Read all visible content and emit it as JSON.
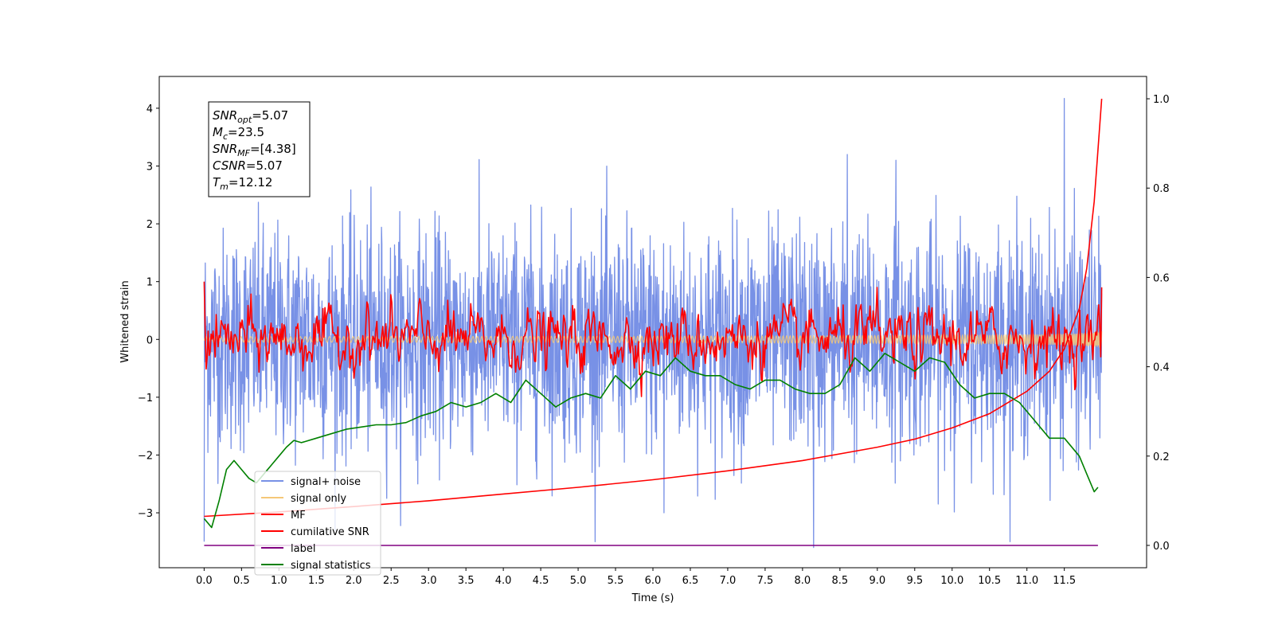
{
  "chart_data": {
    "type": "line",
    "xlabel": "Time (s)",
    "ylabel_left": "Whitened strain",
    "ylabel_right": "",
    "xlim": [
      -0.6,
      12.6
    ],
    "ylim_left": [
      -3.95,
      4.55
    ],
    "ylim_right": [
      -0.05,
      1.05
    ],
    "x_ticks": [
      "0.0",
      "0.5",
      "1.0",
      "1.5",
      "2.0",
      "2.5",
      "3.0",
      "3.5",
      "4.0",
      "4.5",
      "5.0",
      "5.5",
      "6.0",
      "6.5",
      "7.0",
      "7.5",
      "8.0",
      "8.5",
      "9.0",
      "9.5",
      "10.0",
      "10.5",
      "11.0",
      "11.5"
    ],
    "y_ticks_left": [
      "4",
      "3",
      "2",
      "1",
      "0",
      "−1",
      "−2",
      "−3"
    ],
    "y_ticks_right": [
      "1.0",
      "0.8",
      "0.6",
      "0.4",
      "0.2",
      "0.0"
    ],
    "grid": false,
    "legend_position": "lower-left",
    "info_box": {
      "lines": [
        {
          "sym": "SNR",
          "sub": "opt",
          "val": "=5.07"
        },
        {
          "sym": "M",
          "sub": "c",
          "val": "=23.5"
        },
        {
          "sym": "SNR",
          "sub": "MF",
          "val": "=[4.38]"
        },
        {
          "sym": "CSNR",
          "sub": "",
          "val": "=5.07"
        },
        {
          "sym": "T",
          "sub": "m",
          "val": "=12.12"
        }
      ]
    },
    "series": [
      {
        "name": "signal+ noise",
        "color": "#7891e6",
        "axis": "left",
        "kind": "noise",
        "std": 0.95,
        "range": [
          -3.5,
          4.2
        ],
        "x_range": [
          0,
          12.0
        ]
      },
      {
        "name": "signal only",
        "color": "#f5c878",
        "axis": "left",
        "kind": "chirp",
        "amplitude_end": 0.3,
        "x_range": [
          0,
          12.0
        ]
      },
      {
        "name": "MF",
        "color": "#ff0000",
        "axis": "left",
        "kind": "mf",
        "std": 0.22,
        "start": 1.0,
        "end": 0.9,
        "x_range": [
          0,
          12.0
        ]
      },
      {
        "name": "cumilative SNR",
        "color": "#ff0000",
        "axis": "right",
        "x": [
          0.0,
          1.0,
          2.0,
          3.0,
          4.0,
          5.0,
          6.0,
          7.0,
          8.0,
          9.0,
          9.5,
          10.0,
          10.5,
          11.0,
          11.3,
          11.5,
          11.7,
          11.8,
          11.9,
          12.0
        ],
        "y": [
          0.065,
          0.075,
          0.087,
          0.1,
          0.115,
          0.13,
          0.147,
          0.167,
          0.19,
          0.22,
          0.238,
          0.263,
          0.295,
          0.345,
          0.39,
          0.44,
          0.53,
          0.62,
          0.77,
          1.0
        ]
      },
      {
        "name": "label",
        "color": "#800080",
        "axis": "right",
        "x": [
          0.0,
          11.95
        ],
        "y": [
          0.0,
          0.0
        ]
      },
      {
        "name": "signal statistics",
        "color": "#008000",
        "axis": "right",
        "x": [
          0.0,
          0.1,
          0.2,
          0.3,
          0.4,
          0.5,
          0.6,
          0.7,
          0.8,
          0.9,
          1.0,
          1.1,
          1.2,
          1.3,
          1.5,
          1.7,
          1.9,
          2.1,
          2.3,
          2.5,
          2.7,
          2.9,
          3.1,
          3.3,
          3.5,
          3.7,
          3.9,
          4.1,
          4.3,
          4.5,
          4.7,
          4.9,
          5.1,
          5.3,
          5.5,
          5.7,
          5.9,
          6.1,
          6.3,
          6.5,
          6.7,
          6.9,
          7.1,
          7.3,
          7.5,
          7.7,
          7.9,
          8.1,
          8.3,
          8.5,
          8.7,
          8.9,
          9.0,
          9.1,
          9.3,
          9.5,
          9.7,
          9.9,
          10.1,
          10.3,
          10.5,
          10.7,
          10.9,
          11.1,
          11.3,
          11.5,
          11.7,
          11.8,
          11.9,
          11.95
        ],
        "y": [
          0.06,
          0.04,
          0.1,
          0.17,
          0.19,
          0.17,
          0.15,
          0.14,
          0.16,
          0.18,
          0.2,
          0.22,
          0.235,
          0.23,
          0.24,
          0.25,
          0.26,
          0.265,
          0.27,
          0.27,
          0.275,
          0.29,
          0.3,
          0.32,
          0.31,
          0.32,
          0.34,
          0.32,
          0.37,
          0.34,
          0.31,
          0.33,
          0.34,
          0.33,
          0.38,
          0.35,
          0.39,
          0.38,
          0.42,
          0.39,
          0.38,
          0.38,
          0.36,
          0.35,
          0.37,
          0.37,
          0.35,
          0.34,
          0.34,
          0.36,
          0.42,
          0.39,
          0.41,
          0.43,
          0.41,
          0.39,
          0.42,
          0.41,
          0.36,
          0.33,
          0.34,
          0.34,
          0.32,
          0.28,
          0.24,
          0.24,
          0.2,
          0.16,
          0.12,
          0.13
        ]
      }
    ]
  }
}
